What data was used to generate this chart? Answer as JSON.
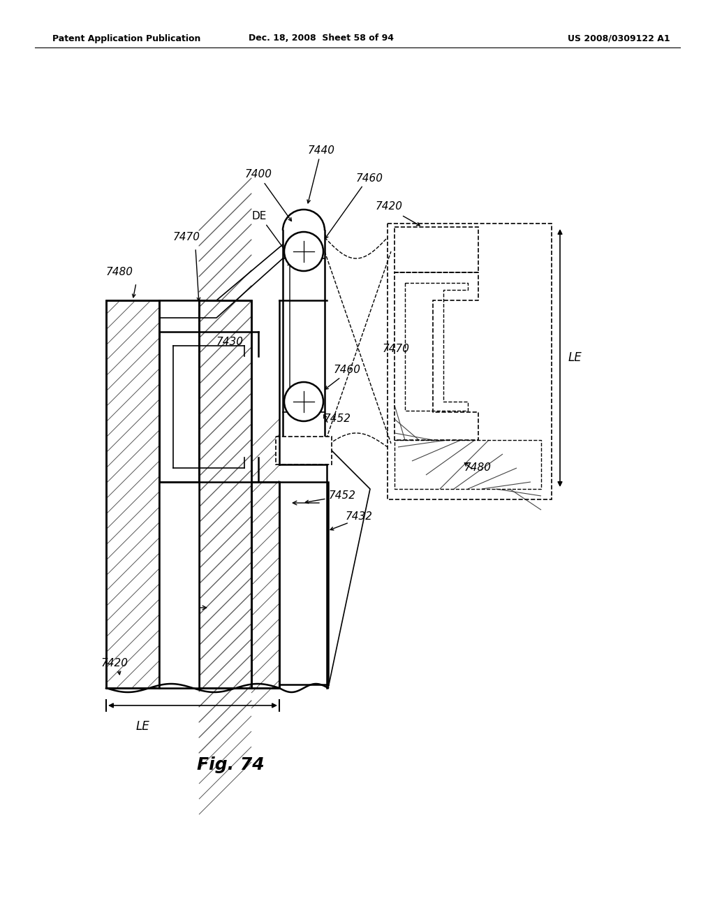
{
  "background_color": "#ffffff",
  "line_color": "#000000",
  "header_left": "Patent Application Publication",
  "header_center": "Dec. 18, 2008  Sheet 58 of 94",
  "header_right": "US 2008/0309122 A1",
  "title": "Fig. 74"
}
